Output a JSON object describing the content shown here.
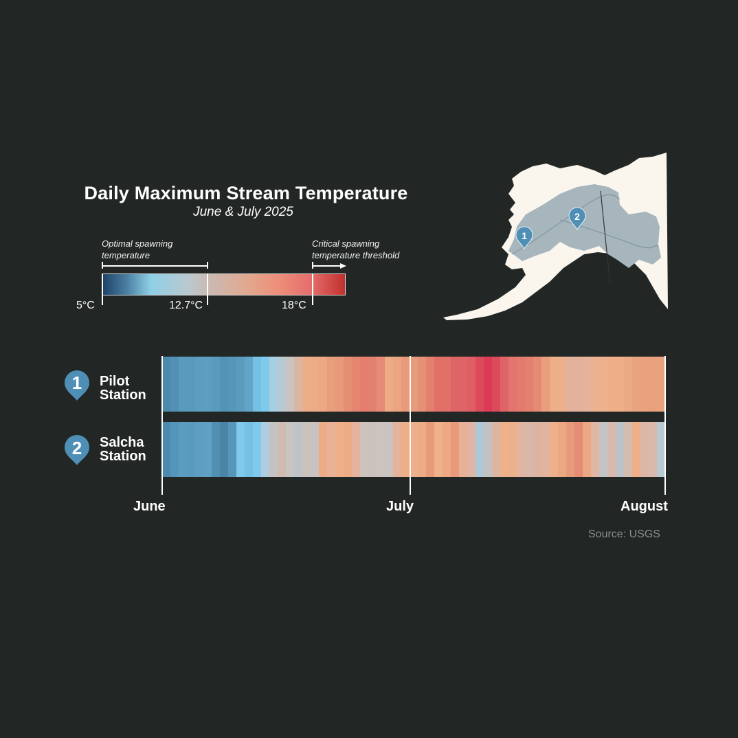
{
  "header": {
    "title": "Daily Maximum Stream Temperature",
    "subtitle": "June & July 2025"
  },
  "legend": {
    "optimal_note": [
      "Optimal spawning",
      "temperature"
    ],
    "critical_note": [
      "Critical spawning",
      "temperature threshold"
    ],
    "ticks": [
      "5°C",
      "12.7°C",
      "18°C"
    ]
  },
  "stations": [
    {
      "number": "1",
      "name_line1": "Pilot",
      "name_line2": "Station"
    },
    {
      "number": "2",
      "name_line1": "Salcha",
      "name_line2": "Station"
    }
  ],
  "axis": {
    "months": [
      "June",
      "July",
      "August"
    ]
  },
  "source": "Source: USGS",
  "colors": {
    "background": "#222726",
    "pin": "#4f8fb5",
    "land": "#faf6ee",
    "basin": "#a7b6bd"
  },
  "chart_data": {
    "type": "heatmap",
    "title": "Daily Maximum Stream Temperature",
    "subtitle": "June & July 2025",
    "x_range": [
      "June 1",
      "July 31"
    ],
    "x_ticks": [
      "June",
      "July",
      "August"
    ],
    "color_scale": {
      "min": "5°C",
      "optimal_upper": "12.7°C",
      "critical": "18°C",
      "stops": [
        "#1d4266",
        "#8fd0e6",
        "#c9bbb5",
        "#ee8f7a",
        "#c0302d"
      ]
    },
    "series": [
      {
        "name": "Pilot Station",
        "colors": [
          "#4b8aad",
          "#5291b4",
          "#5a9abd",
          "#5a9abd",
          "#5c9dc0",
          "#5d9ec1",
          "#5a9abd",
          "#5293b6",
          "#5696b9",
          "#5b9bbe",
          "#63a5c8",
          "#74c1e5",
          "#7ec9ec",
          "#a6cfe3",
          "#b7c9d2",
          "#cbc3bf",
          "#dbb6a4",
          "#ecae89",
          "#edac86",
          "#eda883",
          "#e99f7e",
          "#e89a7a",
          "#e68e74",
          "#e48570",
          "#e57e6e",
          "#e38170",
          "#e78b76",
          "#edac86",
          "#eaa582",
          "#e89a7a",
          "#e89b7b",
          "#e59177",
          "#e4806e",
          "#e17069",
          "#e07068",
          "#de6566",
          "#df6466",
          "#de5e64",
          "#dd4a5c",
          "#dc3b57",
          "#dc4a5c",
          "#df6466",
          "#e37470",
          "#e27a6d",
          "#e4806f",
          "#e68a75",
          "#e99e7e",
          "#eeae88",
          "#ecb08b",
          "#e2b29d",
          "#e2b29d",
          "#e6b39a",
          "#eab290",
          "#edb28c",
          "#eeaf88",
          "#edae88",
          "#eaaa85",
          "#e9a47f",
          "#e9a17e",
          "#eaa07d",
          "#e9a27e"
        ]
      },
      {
        "name": "Salcha Station",
        "colors": [
          "#4b8aad",
          "#5496b9",
          "#5b9dc0",
          "#5a9abd",
          "#5d9ec1",
          "#5fa1c4",
          "#5290b3",
          "#4a84a6",
          "#5896b9",
          "#7ec9ec",
          "#76c0e4",
          "#7ec9ec",
          "#aecde0",
          "#c5c3c2",
          "#cfbbb0",
          "#c8c4c2",
          "#bfc2c6",
          "#c9c2bd",
          "#c8c3c0",
          "#edac86",
          "#e9b196",
          "#eeaf89",
          "#eeac85",
          "#e5b39d",
          "#ccc3be",
          "#ccc2bd",
          "#ccc4c0",
          "#cac3bf",
          "#e4b39c",
          "#edae88",
          "#edb08a",
          "#eeac86",
          "#e89a7a",
          "#eeb28b",
          "#eca983",
          "#e89a7a",
          "#e8b097",
          "#dfb6a5",
          "#afc8d5",
          "#c3c2c3",
          "#ddb5a3",
          "#edb28b",
          "#ecb08a",
          "#e1b5a2",
          "#d8b8ab",
          "#ddb3a1",
          "#e1b4a0",
          "#edb08a",
          "#eda882",
          "#e69b7c",
          "#e68c75",
          "#eca883",
          "#e0b7a5",
          "#c3c4c6",
          "#d8b9ae",
          "#bcc2c7",
          "#d5bcb1",
          "#edb08a",
          "#dcb6a6",
          "#d9b9ad",
          "#b9c9d2"
        ]
      }
    ]
  }
}
